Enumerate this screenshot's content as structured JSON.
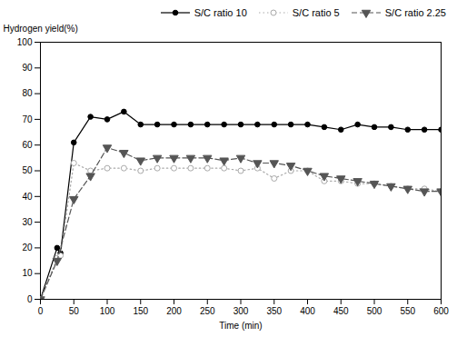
{
  "chart_data": {
    "type": "line",
    "xlabel": "Time (min)",
    "ylabel": "Hydrogen yield(%)",
    "xlim": [
      0,
      600
    ],
    "ylim": [
      0,
      100
    ],
    "xticks": [
      0,
      50,
      100,
      150,
      200,
      250,
      300,
      350,
      400,
      450,
      500,
      550,
      600
    ],
    "yticks": [
      0,
      10,
      20,
      30,
      40,
      50,
      60,
      70,
      80,
      90,
      100
    ],
    "grid": false,
    "legend": "upper right",
    "series": [
      {
        "name": "S/C ratio 10",
        "color": "#000000",
        "marker": "circle",
        "line_style": "solid",
        "x": [
          0,
          25,
          30,
          50,
          75,
          100,
          125,
          150,
          175,
          200,
          225,
          250,
          275,
          300,
          325,
          350,
          375,
          400,
          425,
          450,
          475,
          500,
          525,
          550,
          575,
          600
        ],
        "values": [
          0,
          20,
          18,
          61,
          71,
          70,
          73,
          68,
          68,
          68,
          68,
          68,
          68,
          68,
          68,
          68,
          68,
          68,
          67,
          66,
          68,
          67,
          67,
          66,
          66,
          66
        ]
      },
      {
        "name": "S/C ratio 5",
        "color": "#aaaaaa",
        "marker": "open_circle",
        "line_style": "dotted",
        "x": [
          0,
          25,
          30,
          50,
          75,
          100,
          125,
          150,
          175,
          200,
          225,
          250,
          275,
          300,
          325,
          350,
          375,
          400,
          425,
          450,
          475,
          500,
          525,
          550,
          575,
          600
        ],
        "values": [
          0,
          16,
          17,
          53,
          50,
          51,
          51,
          50,
          51,
          51,
          51,
          51,
          51,
          50,
          51,
          47,
          50,
          50,
          46,
          46,
          45,
          45,
          44,
          43,
          43,
          42
        ]
      },
      {
        "name": "S/C ratio 2.25",
        "color": "#555555",
        "marker": "triangle_down",
        "line_style": "dashed",
        "x": [
          0,
          25,
          50,
          75,
          100,
          125,
          150,
          175,
          200,
          225,
          250,
          275,
          300,
          325,
          350,
          375,
          400,
          425,
          450,
          475,
          500,
          525,
          550,
          575,
          600
        ],
        "values": [
          0,
          15,
          39,
          48,
          59,
          57,
          54,
          55,
          55,
          55,
          55,
          54,
          55,
          53,
          53,
          52,
          50,
          48,
          47,
          46,
          45,
          44,
          43,
          42,
          42
        ]
      }
    ]
  }
}
